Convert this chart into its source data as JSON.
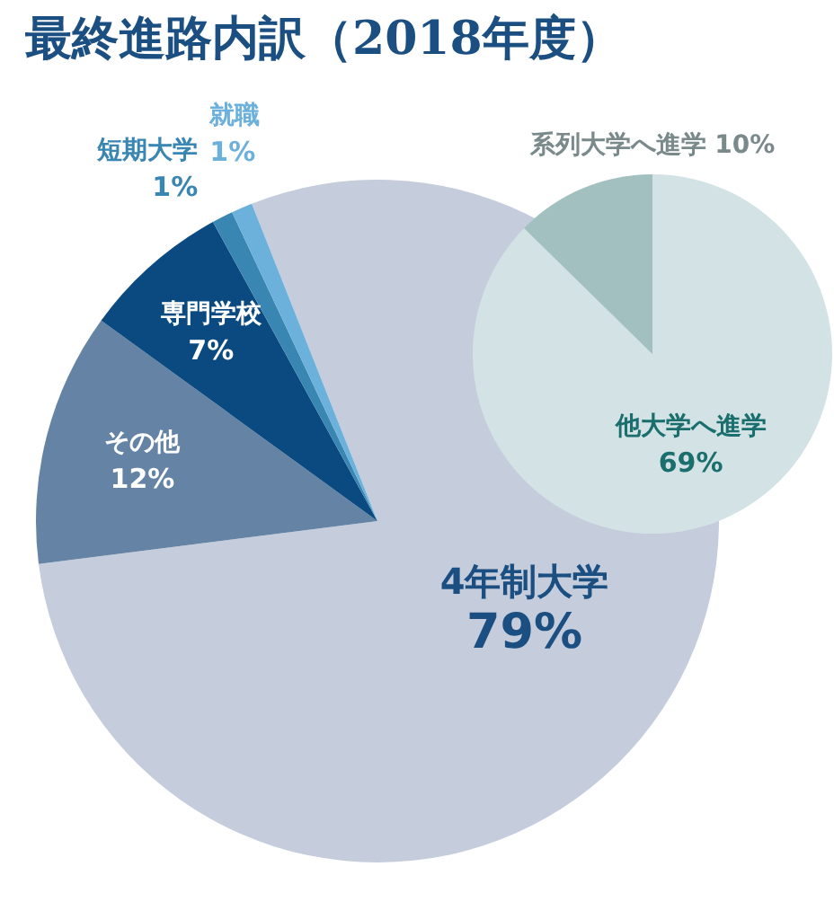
{
  "chart_data": [
    {
      "type": "pie",
      "title": "最終進路内訳（2018年度）",
      "categories": [
        "4年制大学",
        "その他",
        "専門学校",
        "短期大学",
        "就職"
      ],
      "values": [
        79,
        12,
        7,
        1,
        1
      ],
      "value_labels": [
        "79%",
        "12%",
        "7%",
        "1%",
        "1%"
      ],
      "colors": [
        "#c5cddc",
        "#6483a5",
        "#0a4a80",
        "#3a86b3",
        "#6cb0dc"
      ]
    },
    {
      "type": "pie",
      "categories": [
        "他大学へ進学",
        "系列大学へ進学"
      ],
      "values": [
        69,
        10
      ],
      "value_labels": [
        "69%",
        "10%"
      ],
      "colors": [
        "#d3e3e5",
        "#a3c0c0"
      ]
    }
  ]
}
